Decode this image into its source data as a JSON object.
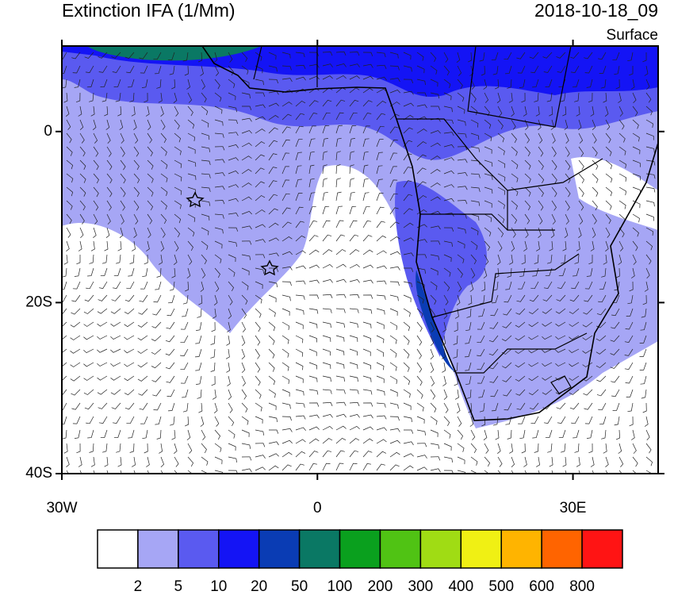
{
  "header": {
    "title": "Extinction IFA (1/Mm)",
    "time": "2018-10-18_09",
    "level": "Surface"
  },
  "map": {
    "lon_range": [
      -30,
      40
    ],
    "lat_range": [
      -40,
      10
    ],
    "lat_ticks": [
      {
        "value": 0,
        "label": "0"
      },
      {
        "value": -20,
        "label": "20S"
      },
      {
        "value": -40,
        "label": "40S"
      }
    ],
    "lon_ticks": [
      {
        "value": -30,
        "label": "30W"
      },
      {
        "value": 0,
        "label": "0"
      },
      {
        "value": 30,
        "label": "30E"
      }
    ]
  },
  "colorbar": {
    "levels": [
      2,
      5,
      10,
      20,
      50,
      100,
      200,
      300,
      400,
      500,
      600,
      800
    ],
    "colors": [
      "#ffffff",
      "#a6a6f5",
      "#5a5af0",
      "#1414f5",
      "#0a3cb4",
      "#0a7864",
      "#0aa01e",
      "#50c314",
      "#a0dc14",
      "#f0f014",
      "#ffb400",
      "#ff6400",
      "#ff1414"
    ]
  }
}
